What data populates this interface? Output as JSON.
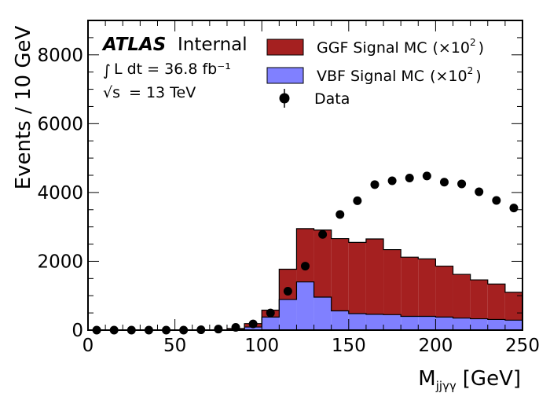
{
  "chart_data": {
    "type": "bar",
    "x_edges": [
      0,
      10,
      20,
      30,
      40,
      50,
      60,
      70,
      80,
      90,
      100,
      110,
      120,
      130,
      140,
      150,
      160,
      170,
      180,
      190,
      200,
      210,
      220,
      230,
      240,
      250
    ],
    "series": [
      {
        "name": "GGF Signal MC",
        "kind": "stacked-hist",
        "color": "#a52020",
        "values": [
          0,
          0,
          0,
          0,
          0,
          0,
          0,
          0,
          30,
          100,
          200,
          880,
          1550,
          1950,
          2100,
          2070,
          2190,
          1890,
          1720,
          1670,
          1480,
          1270,
          1130,
          1030,
          810
        ]
      },
      {
        "name": "VBF Signal MC",
        "kind": "stacked-hist",
        "color": "#8080ff",
        "values": [
          0,
          0,
          0,
          0,
          0,
          0,
          0,
          0,
          15,
          90,
          380,
          890,
          1400,
          960,
          560,
          480,
          460,
          450,
          400,
          400,
          380,
          350,
          330,
          310,
          290
        ]
      },
      {
        "name": "Data",
        "kind": "points",
        "color": "#000000",
        "x": [
          5,
          15,
          25,
          35,
          45,
          55,
          65,
          75,
          85,
          95,
          105,
          115,
          125,
          135,
          145,
          155,
          165,
          175,
          185,
          195,
          205,
          215,
          225,
          235,
          245
        ],
        "values": [
          0,
          0,
          0,
          0,
          0,
          0,
          10,
          30,
          80,
          180,
          500,
          1130,
          1860,
          2780,
          3360,
          3760,
          4230,
          4340,
          4420,
          4480,
          4300,
          4250,
          4020,
          3770,
          3550
        ]
      }
    ],
    "xlabel_main": "M",
    "xlabel_sub": "jjγγ",
    "xlabel_unit": "[GeV]",
    "ylabel": "Events / 10 GeV",
    "xlim": [
      0,
      250
    ],
    "ylim": [
      0,
      9000
    ],
    "x_ticks": [
      "0",
      "50",
      "100",
      "150",
      "200",
      "250"
    ],
    "y_ticks": [
      "0",
      "2000",
      "4000",
      "6000",
      "8000"
    ],
    "legend_placement": "top-right",
    "grid": false
  },
  "annotations": {
    "atlas": "ATLAS",
    "internal": "Internal",
    "integral_symbol": "∫",
    "lumi_text": "L dt = 36.8 fb⁻¹",
    "sqrt_symbol": "√s",
    "energy_text": "= 13 TeV"
  },
  "legend": {
    "ggf_label": "GGF Signal MC",
    "vbf_label": "VBF Signal MC",
    "scale_open": "(×10",
    "scale_exp": "2",
    "scale_close": ")",
    "data_label": "Data"
  },
  "colors": {
    "ggf": "#a52020",
    "vbf": "#8080ff",
    "data": "#000000"
  }
}
